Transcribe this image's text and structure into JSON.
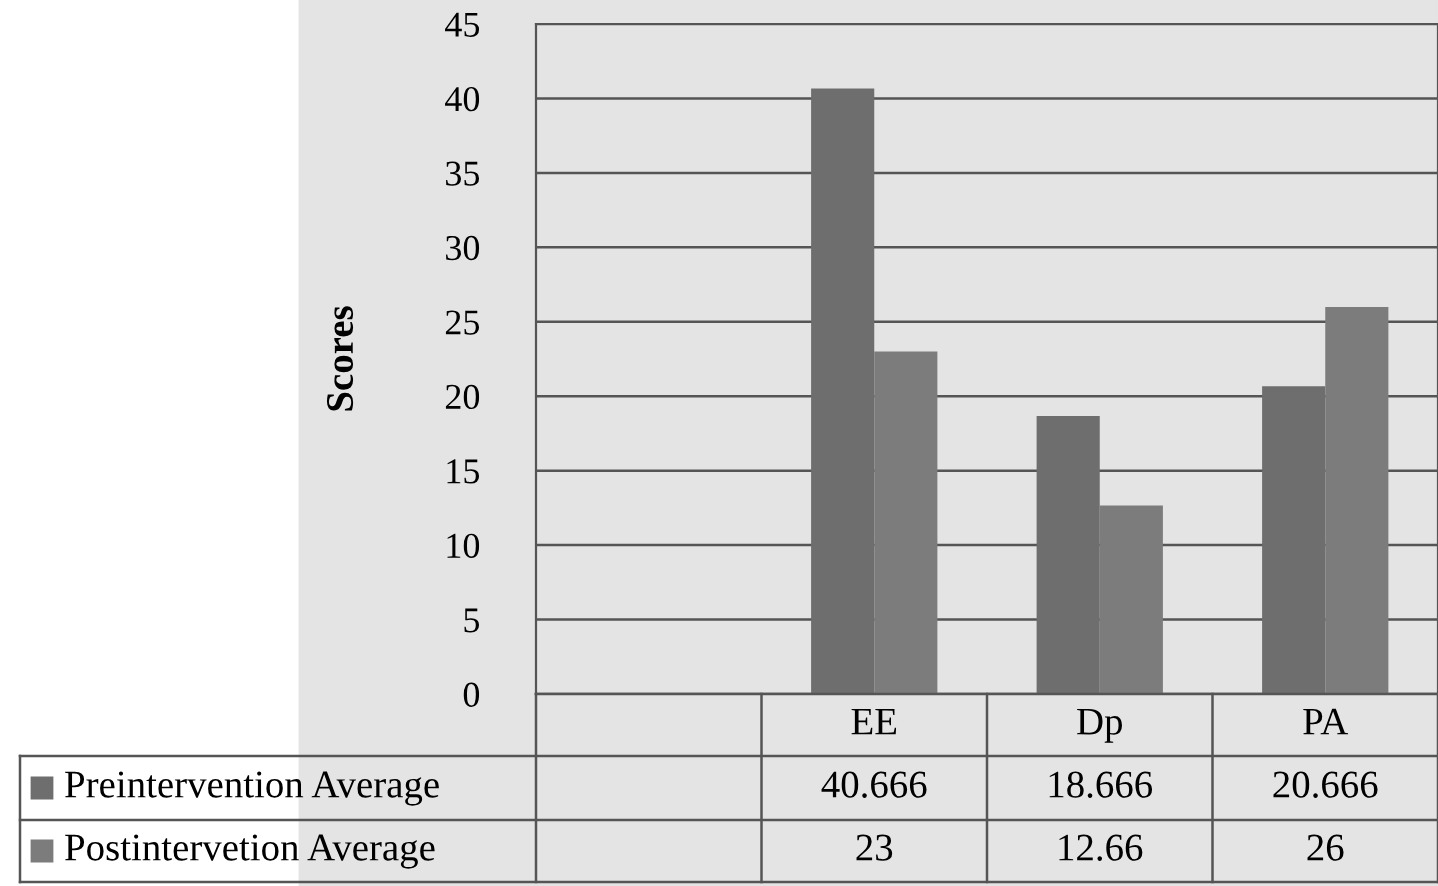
{
  "chart_data": {
    "type": "bar",
    "ylabel": "Scores",
    "categories": [
      null,
      "EE",
      "Dp",
      "PA"
    ],
    "series": [
      {
        "name": "Preintervention Average",
        "color": "#6e6e6e",
        "values": [
          null,
          40.666,
          18.666,
          20.666
        ]
      },
      {
        "name": "Postintervetion Average",
        "color": "#7c7c7c",
        "values": [
          null,
          23,
          12.66,
          26
        ]
      }
    ],
    "ylim": [
      0,
      45
    ],
    "yticks": [
      0,
      5,
      10,
      15,
      20,
      25,
      30,
      35,
      40,
      45
    ],
    "grid": "y",
    "legend": "bottom",
    "data_labels": true
  }
}
